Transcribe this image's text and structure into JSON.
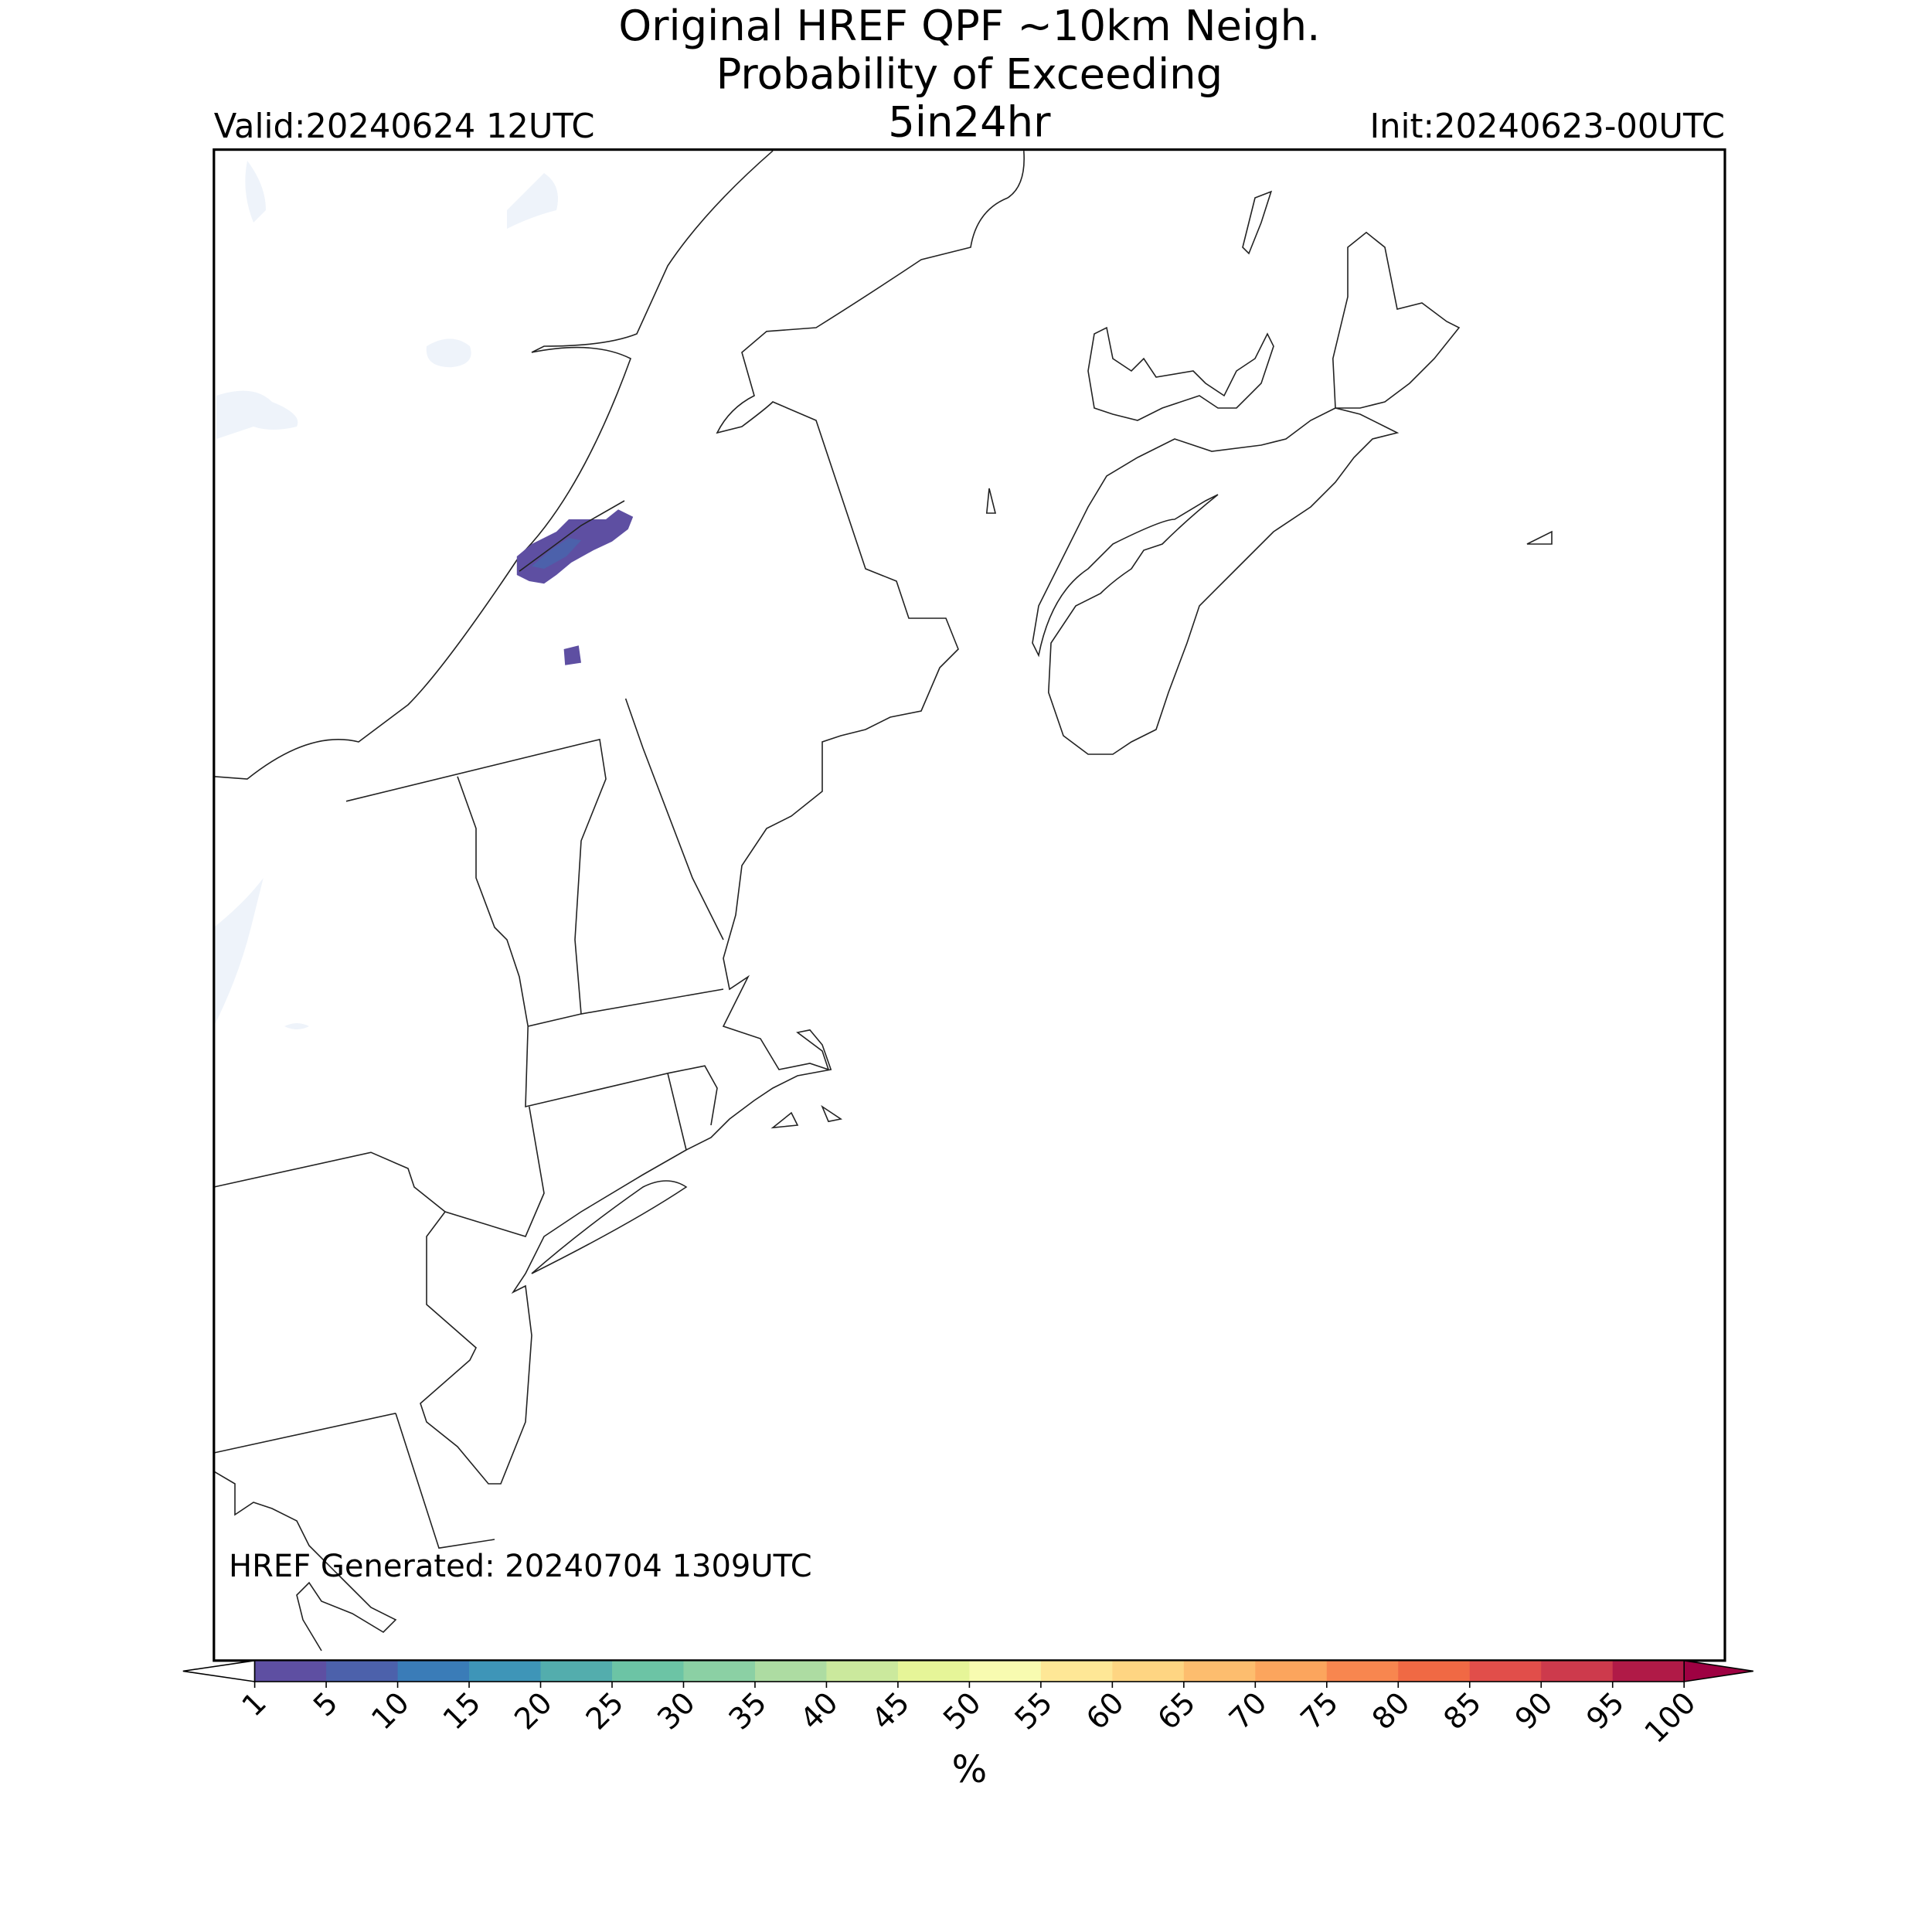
{
  "title": "Original HREF QPF ~10km Neigh.",
  "subtitle": "Probability of Exceeding",
  "threshold": "5in24hr",
  "valid": "Valid:20240624 12UTC",
  "init": "Init:20240623-00UTC",
  "footnote": "HREF Generated: 20240704 1309UTC",
  "colorbar": {
    "label": "%",
    "ticks": [
      1,
      5,
      10,
      15,
      20,
      25,
      30,
      35,
      40,
      45,
      50,
      55,
      60,
      65,
      70,
      75,
      80,
      85,
      90,
      95,
      100
    ],
    "colors": [
      "#5e4fa2",
      "#4c61ab",
      "#3a7cb8",
      "#3e95b8",
      "#53adad",
      "#6cc4a5",
      "#8bd0a4",
      "#addca2",
      "#cbe99d",
      "#e6f598",
      "#f8fbb0",
      "#fee796",
      "#fed582",
      "#fdbd6e",
      "#fca55d",
      "#f8864f",
      "#f06944",
      "#e14e4a",
      "#cd3a4c",
      "#b01a47"
    ],
    "under_color": "#ffffff",
    "over_color": "#9e0142"
  }
}
